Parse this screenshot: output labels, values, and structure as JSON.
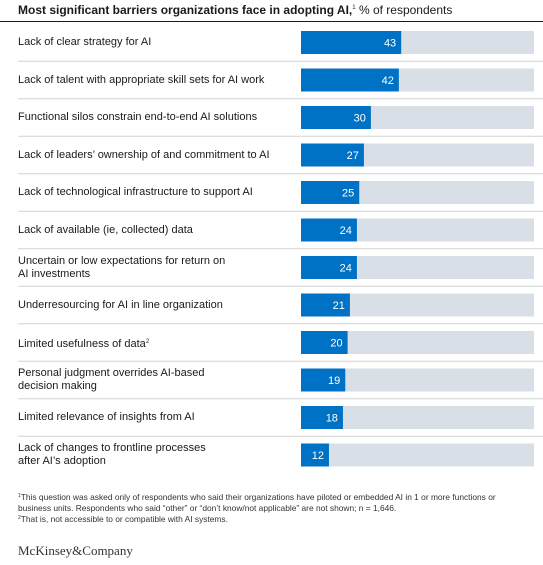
{
  "title": {
    "bold": "Most significant barriers organizations face in adopting AI,",
    "sup": "1",
    "rest": " % of respondents"
  },
  "colors": {
    "bar": "#0072c6",
    "track": "#d9dfe6",
    "divider": "#d4d4d4",
    "value_text": "#ffffff"
  },
  "chart_data": {
    "type": "bar",
    "orientation": "horizontal",
    "xlim": [
      0,
      100
    ],
    "categories": [
      "Lack of clear strategy for AI",
      "Lack of talent with appropriate skill sets for AI work",
      "Functional silos constrain end-to-end AI solutions",
      "Lack of leaders’ ownership of and commitment to AI",
      "Lack of technological infrastructure to support AI",
      "Lack of available (ie, collected) data",
      "Uncertain or low expectations for return on\nAI investments",
      "Underresourcing for AI in line organization",
      "Limited usefulness of data",
      "Personal judgment overrides AI-based\ndecision making",
      "Limited relevance of insights from AI",
      "Lack of changes to frontline processes\nafter AI’s adoption"
    ],
    "category_superscripts": {
      "8": "2"
    },
    "values": [
      43,
      42,
      30,
      27,
      25,
      24,
      24,
      21,
      20,
      19,
      18,
      12
    ]
  },
  "footnotes": [
    {
      "mark": "1",
      "text": "This question was asked only of respondents who said their organizations have piloted or embedded AI in 1 or more functions or business units. Respondents who said “other” or “don’t know/not applicable” are not shown; n = 1,646."
    },
    {
      "mark": "2",
      "text": "That is, not accessible to or compatible with AI systems."
    }
  ],
  "brand": "McKinsey&Company"
}
